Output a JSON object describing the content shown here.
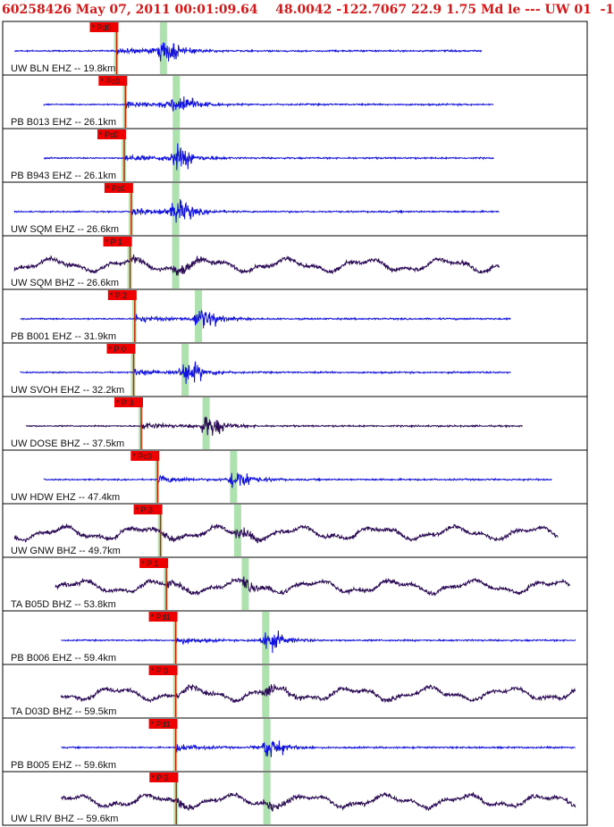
{
  "header": {
    "text": "60258426 May 07, 2011 00:01:09.64    48.0042 -122.7067 22.9 1.75 Md le --- UW 01  -1"
  },
  "colors": {
    "header": "#d81818",
    "trace_blue": "#1010e0",
    "trace_purple": "#2a0a55",
    "pick_box": "#ee0000",
    "p_line": "#cc2200",
    "s_band": "#9fdc9f",
    "frame": "#000000"
  },
  "traces": [
    {
      "label": "UW BLN EHZ -- 19.8km",
      "pick": "Pd0",
      "pickText": "* Pd0",
      "p": 0.195,
      "s": 0.275,
      "color": "trace_blue",
      "start": 0.02,
      "end": 0.82,
      "style": "short"
    },
    {
      "label": "PB B013 EHZ -- 26.1km",
      "pick": "Pc0",
      "pickText": "* Pc0",
      "p": 0.21,
      "s": 0.297,
      "color": "trace_blue",
      "start": 0.07,
      "end": 0.84,
      "style": "short"
    },
    {
      "label": "PB B943 EHZ -- 26.1km",
      "pick": "Pc0",
      "pickText": "* Pc0",
      "p": 0.208,
      "s": 0.297,
      "color": "trace_blue",
      "start": 0.07,
      "end": 0.84,
      "style": "short"
    },
    {
      "label": "UW SQM EHZ -- 26.6km",
      "pick": "Pc0",
      "pickText": "* Pc0",
      "p": 0.22,
      "s": 0.296,
      "color": "trace_blue",
      "start": 0.02,
      "end": 0.85,
      "style": "short"
    },
    {
      "label": "UW SQM BHZ -- 26.6km",
      "pick": "P 1",
      "pickText": "* P 1",
      "p": 0.218,
      "s": 0.296,
      "color": "trace_purple",
      "start": 0.02,
      "end": 0.85,
      "style": "long"
    },
    {
      "label": "PB B001 EHZ -- 31.9km",
      "pick": "P 2",
      "pickText": "* P 2",
      "p": 0.226,
      "s": 0.335,
      "color": "trace_blue",
      "start": 0.03,
      "end": 0.87,
      "style": "short"
    },
    {
      "label": "UW SVOH EHZ -- 32.2km",
      "pick": "P 0",
      "pickText": "* P 0",
      "p": 0.224,
      "s": 0.312,
      "color": "trace_blue",
      "start": 0.03,
      "end": 0.87,
      "style": "short"
    },
    {
      "label": "UW DOSE BHZ -- 37.5km",
      "pick": "P 3",
      "pickText": "* P 3",
      "p": 0.237,
      "s": 0.348,
      "color": "trace_purple",
      "start": 0.04,
      "end": 0.89,
      "style": "short"
    },
    {
      "label": "UW HDW EHZ -- 47.4km",
      "pick": "Pc0",
      "pickText": "* Pc0",
      "p": 0.265,
      "s": 0.395,
      "color": "trace_blue",
      "start": 0.07,
      "end": 0.94,
      "style": "short"
    },
    {
      "label": "UW GNW BHZ -- 49.7km",
      "pick": "P 3",
      "pickText": "* P 3",
      "p": 0.27,
      "s": 0.402,
      "color": "trace_purple",
      "start": 0.02,
      "end": 0.95,
      "style": "long"
    },
    {
      "label": "TA B05D BHZ -- 53.8km",
      "pick": "P 1",
      "pickText": "* P 1",
      "p": 0.28,
      "s": 0.415,
      "color": "trace_purple",
      "start": 0.09,
      "end": 0.97,
      "style": "long"
    },
    {
      "label": "PB B006 EHZ -- 59.4km",
      "pick": "Pd1",
      "pickText": "* Pd1",
      "p": 0.296,
      "s": 0.45,
      "color": "trace_blue",
      "start": 0.1,
      "end": 0.98,
      "style": "short"
    },
    {
      "label": "TA D03D BHZ -- 59.5km",
      "pick": "P 0",
      "pickText": "* P 0",
      "p": 0.296,
      "s": 0.45,
      "color": "trace_purple",
      "start": 0.1,
      "end": 0.98,
      "style": "long"
    },
    {
      "label": "PB B005 EHZ -- 59.6km",
      "pick": "Pd1",
      "pickText": "* Pd1",
      "p": 0.296,
      "s": 0.452,
      "color": "trace_blue",
      "start": 0.1,
      "end": 0.98,
      "style": "short"
    },
    {
      "label": "UW LRIV BHZ -- 59.6km",
      "pick": "P 3",
      "pickText": "* P 3",
      "p": 0.297,
      "s": 0.452,
      "color": "trace_purple",
      "start": 0.1,
      "end": 0.98,
      "style": "long"
    }
  ]
}
